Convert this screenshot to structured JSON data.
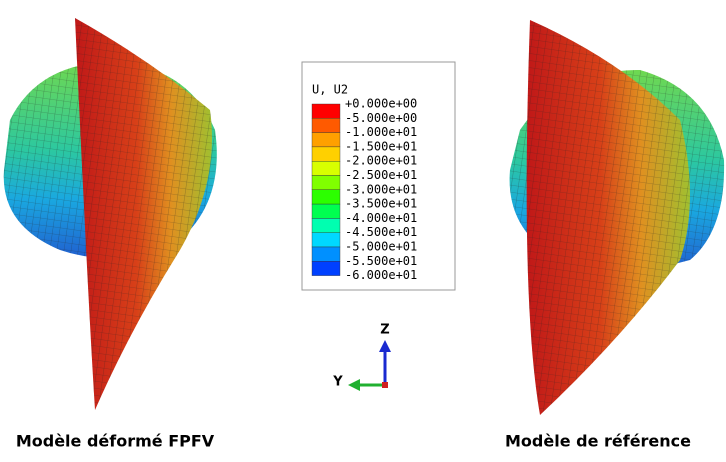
{
  "legend": {
    "title": "U, U2",
    "labels": [
      "+0.000e+00",
      "-5.000e+00",
      "-1.000e+01",
      "-1.500e+01",
      "-2.000e+01",
      "-2.500e+01",
      "-3.000e+01",
      "-3.500e+01",
      "-4.000e+01",
      "-4.500e+01",
      "-5.000e+01",
      "-5.500e+01",
      "-6.000e+01"
    ],
    "colors": [
      "#ff0000",
      "#ff5a00",
      "#ffa000",
      "#ffd000",
      "#d8ff00",
      "#80ff00",
      "#2cff00",
      "#00ff50",
      "#00ffb0",
      "#00d8ff",
      "#0090ff",
      "#0040ff"
    ]
  },
  "triad": {
    "z": "Z",
    "y": "Y"
  },
  "captions": {
    "left": "Modèle déformé FPFV",
    "right": "Modèle de référence"
  }
}
